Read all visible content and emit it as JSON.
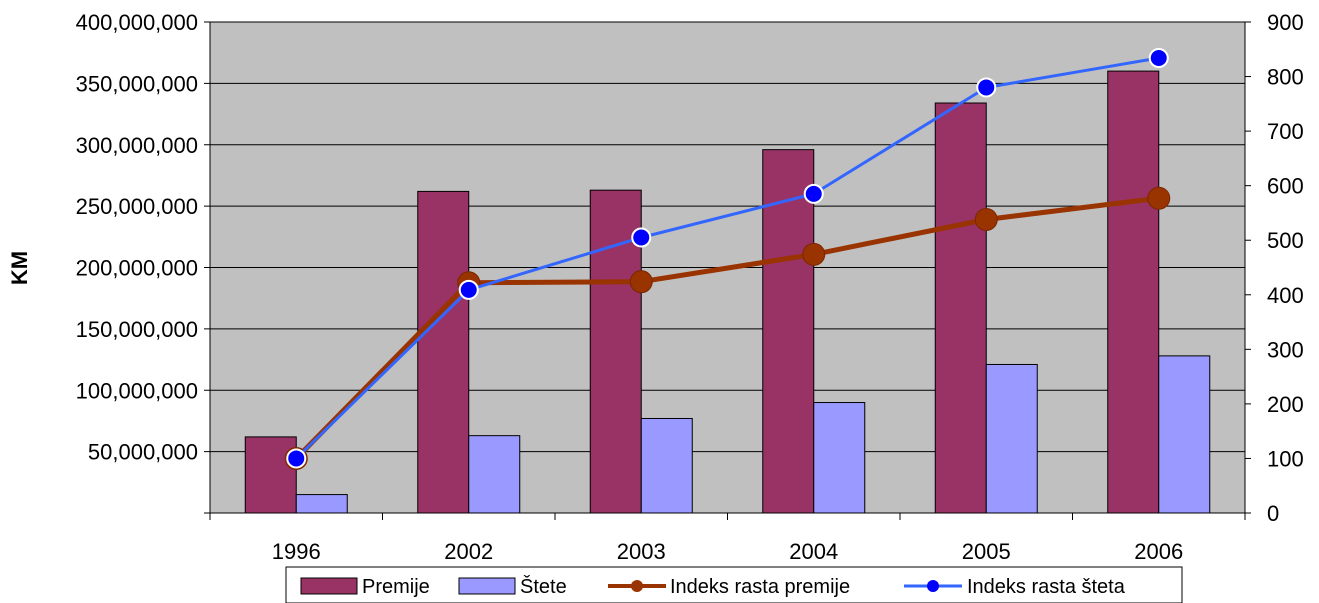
{
  "chart_data": {
    "type": "bar",
    "categories": [
      "1996",
      "2002",
      "2003",
      "2004",
      "2005",
      "2006"
    ],
    "series": [
      {
        "name": "Premije",
        "type": "bar",
        "axis": "left",
        "color": "#993366",
        "values": [
          62000000,
          262000000,
          263000000,
          296000000,
          334000000,
          360000000
        ]
      },
      {
        "name": "Štete",
        "type": "bar",
        "axis": "left",
        "color": "#9999ff",
        "values": [
          15000000,
          63000000,
          77000000,
          90000000,
          121000000,
          128000000
        ]
      },
      {
        "name": "Indeks rasta premije",
        "type": "line",
        "axis": "right",
        "color": "#993300",
        "values": [
          100,
          422,
          424,
          474,
          538,
          577
        ]
      },
      {
        "name": "Indeks rasta šteta",
        "type": "line",
        "axis": "right",
        "color": "#3366ff",
        "marker_color": "#0000ff",
        "values": [
          100,
          409,
          505,
          585,
          780,
          834
        ]
      }
    ],
    "ylabel": "KM",
    "ylim": [
      0,
      400000000
    ],
    "y2lim": [
      0,
      900
    ],
    "y_ticks": [
      "0",
      "50,000,000",
      "100,000,000",
      "150,000,000",
      "200,000,000",
      "250,000,000",
      "300,000,000",
      "350,000,000",
      "400,000,000"
    ],
    "y2_ticks": [
      "0",
      "100",
      "200",
      "300",
      "400",
      "500",
      "600",
      "700",
      "800",
      "900"
    ],
    "plot_background": "#c0c0c0",
    "grid": true,
    "legend_position": "bottom"
  }
}
